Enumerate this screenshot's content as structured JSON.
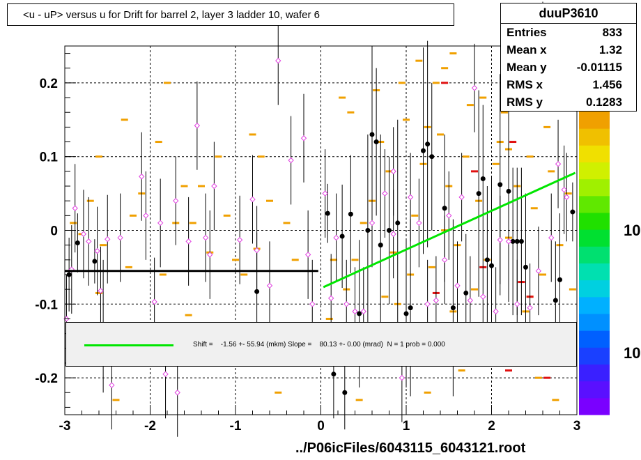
{
  "title": "<u - uP>       versus   u for Drift for barrel 2, layer 3 ladder 10, wafer 6",
  "stats": {
    "name": "duuP3610",
    "rows": [
      {
        "k": "Entries",
        "v": "833"
      },
      {
        "k": "Mean x",
        "v": "1.32"
      },
      {
        "k": "Mean y",
        "v": "-0.01115"
      },
      {
        "k": "RMS x",
        "v": "1.456"
      },
      {
        "k": "RMS y",
        "v": "0.1283"
      }
    ]
  },
  "fit": {
    "text": "Shift =    -1.56 +- 55.94 (mkm) Slope =    80.13 +- 0.00 (mrad)  N = 1 prob = 0.000",
    "line_color": "#00e600"
  },
  "footer": "../P06icFiles/6043115_6043121.root",
  "palette_labels": [
    "10",
    "10"
  ],
  "chart_data": {
    "type": "scatter",
    "xlim": [
      -3,
      3
    ],
    "ylim": [
      -0.25,
      0.25
    ],
    "x_ticks": [
      "-3",
      "-2",
      "-1",
      "0",
      "1",
      "2",
      "3"
    ],
    "y_ticks": [
      "-0.2",
      "-0.1",
      "0",
      "0.1",
      "0.2"
    ],
    "y_tick_values": [
      -0.2,
      -0.1,
      0,
      0.1,
      0.2
    ],
    "grid": true,
    "colors": {
      "hist": "#f0a000",
      "hist_hot": "#e01010",
      "profile": "#000000",
      "open": "#e040e0",
      "fit": "#00e600",
      "ref": "#000000"
    },
    "reference_line": {
      "x": [
        -3,
        -0.03
      ],
      "y": [
        -0.055,
        -0.055
      ]
    },
    "fit_line": {
      "x": [
        0.03,
        2.98
      ],
      "y": [
        -0.077,
        0.078
      ]
    },
    "hist_cells": [
      [
        -2.8,
        -0.005
      ],
      [
        -2.7,
        0.04
      ],
      [
        -2.6,
        -0.085
      ],
      [
        -2.55,
        -0.02
      ],
      [
        -2.3,
        0.15
      ],
      [
        -2.2,
        0.02
      ],
      [
        -2.1,
        -0.13
      ],
      [
        -1.9,
        0.12
      ],
      [
        -1.8,
        0.2
      ],
      [
        -1.7,
        0.01
      ],
      [
        -1.6,
        0.06
      ],
      [
        -1.4,
        0.06
      ],
      [
        -1.3,
        -0.03
      ],
      [
        -1.2,
        0.1
      ],
      [
        -1.1,
        0.02
      ],
      [
        -1.0,
        -0.04
      ],
      [
        -0.9,
        -0.06
      ],
      [
        -0.8,
        0.13
      ],
      [
        -0.7,
        0.1
      ],
      [
        -0.6,
        0.04
      ],
      [
        -0.4,
        0.01
      ],
      [
        -0.3,
        -0.04
      ],
      [
        -1.5,
        0.01
      ],
      [
        -0.75,
        -0.025
      ],
      [
        -0.25,
        -0.17
      ],
      [
        -0.5,
        -0.22
      ],
      [
        -2.6,
        0.1
      ],
      [
        -2.9,
        0.01
      ],
      [
        -2.1,
        0.05
      ],
      [
        -2.9,
        -0.16
      ],
      [
        -2.25,
        -0.05
      ],
      [
        -1.85,
        -0.06
      ],
      [
        -1.55,
        -0.115
      ],
      [
        -2.4,
        -0.23
      ],
      [
        0.1,
        -0.12
      ],
      [
        0.2,
        -0.14
      ],
      [
        0.3,
        -0.08
      ],
      [
        0.4,
        -0.04
      ],
      [
        0.5,
        0.01
      ],
      [
        0.6,
        0.04
      ],
      [
        0.7,
        0.12
      ],
      [
        0.8,
        0.08
      ],
      [
        0.9,
        -0.1
      ],
      [
        1.0,
        0.15
      ],
      [
        1.1,
        0.02
      ],
      [
        1.2,
        0.09
      ],
      [
        1.3,
        -0.05
      ],
      [
        1.4,
        0.13
      ],
      [
        1.5,
        0.06
      ],
      [
        1.6,
        -0.02
      ],
      [
        1.7,
        0.1
      ],
      [
        1.8,
        -0.08
      ],
      [
        1.9,
        0.18
      ],
      [
        2.0,
        -0.14
      ],
      [
        2.1,
        0.12
      ],
      [
        2.2,
        -0.01
      ],
      [
        2.3,
        0.06
      ],
      [
        2.4,
        -0.11
      ],
      [
        2.5,
        0.03
      ],
      [
        2.6,
        -0.06
      ],
      [
        2.7,
        0.08
      ],
      [
        2.8,
        -0.02
      ],
      [
        2.9,
        0.05
      ],
      [
        1.35,
        0.2
      ],
      [
        1.45,
        0.22
      ],
      [
        1.55,
        0.24
      ],
      [
        0.35,
        0.16
      ],
      [
        0.95,
        0.2
      ],
      [
        1.15,
        0.23
      ],
      [
        2.15,
        0.16
      ],
      [
        2.35,
        0.2
      ],
      [
        2.55,
        -0.2
      ],
      [
        2.75,
        -0.23
      ],
      [
        2.85,
        -0.17
      ],
      [
        1.65,
        -0.19
      ],
      [
        1.25,
        -0.22
      ],
      [
        0.55,
        -0.18
      ],
      [
        0.45,
        -0.23
      ],
      [
        0.75,
        -0.09
      ],
      [
        1.05,
        -0.06
      ],
      [
        1.85,
        0.04
      ],
      [
        2.05,
        0.09
      ],
      [
        2.25,
        -0.16
      ],
      [
        2.45,
        0.1
      ],
      [
        2.65,
        0.14
      ],
      [
        2.95,
        -0.08
      ],
      [
        0.65,
        0.19
      ],
      [
        0.25,
        0.18
      ],
      [
        1.75,
        0.17
      ],
      [
        0.15,
        -0.04
      ],
      [
        1.95,
        -0.04
      ],
      [
        2.35,
        -0.13
      ],
      [
        2.45,
        -0.09
      ],
      [
        2.2,
        0.11
      ],
      [
        1.55,
        -0.11
      ],
      [
        1.25,
        0.14
      ],
      [
        0.85,
        -0.03
      ],
      [
        1.45,
        0.0
      ]
    ],
    "hot_cells": [
      [
        1.45,
        0.2
      ],
      [
        1.35,
        -0.085
      ],
      [
        1.8,
        0.08
      ],
      [
        2.25,
        0.12
      ],
      [
        2.35,
        -0.07
      ],
      [
        2.45,
        -0.09
      ],
      [
        2.65,
        -0.2
      ],
      [
        1.9,
        -0.05
      ],
      [
        2.2,
        -0.19
      ]
    ],
    "profile_points": [
      {
        "x": -2.95,
        "y": -0.06,
        "e": 0.05
      },
      {
        "x": -2.85,
        "y": -0.017,
        "e": 0.04
      },
      {
        "x": -2.65,
        "y": -0.042,
        "e": 0.03
      },
      {
        "x": -2.55,
        "y": -0.13,
        "e": 0.09
      },
      {
        "x": -0.75,
        "y": -0.083,
        "e": 0.08
      },
      {
        "x": 0.08,
        "y": 0.023,
        "e": 0.04
      },
      {
        "x": 0.15,
        "y": -0.195,
        "e": 0.06
      },
      {
        "x": 0.28,
        "y": -0.22,
        "e": 0.05
      },
      {
        "x": 0.35,
        "y": 0.022,
        "e": 0.08
      },
      {
        "x": 0.45,
        "y": -0.113,
        "e": 0.1
      },
      {
        "x": 0.6,
        "y": 0.13,
        "e": 0.12
      },
      {
        "x": 0.65,
        "y": 0.12,
        "e": 0.1
      },
      {
        "x": 0.7,
        "y": -0.02,
        "e": 0.15
      },
      {
        "x": 0.8,
        "y": 0.0,
        "e": 0.1
      },
      {
        "x": 0.9,
        "y": 0.01,
        "e": 0.14
      },
      {
        "x": 1.0,
        "y": -0.113,
        "e": 0.1
      },
      {
        "x": 1.05,
        "y": -0.105,
        "e": 0.12
      },
      {
        "x": 1.2,
        "y": 0.108,
        "e": 0.14
      },
      {
        "x": 1.25,
        "y": 0.117,
        "e": 0.14
      },
      {
        "x": 1.3,
        "y": 0.1,
        "e": 0.1
      },
      {
        "x": 1.45,
        "y": 0.03,
        "e": 0.1
      },
      {
        "x": 1.55,
        "y": -0.105,
        "e": 0.12
      },
      {
        "x": 1.7,
        "y": -0.085,
        "e": 0.08
      },
      {
        "x": 1.85,
        "y": 0.05,
        "e": 0.14
      },
      {
        "x": 1.9,
        "y": 0.07,
        "e": 0.1
      },
      {
        "x": 1.95,
        "y": -0.04,
        "e": 0.1
      },
      {
        "x": 2.0,
        "y": -0.048,
        "e": 0.12
      },
      {
        "x": 2.1,
        "y": 0.062,
        "e": 0.15
      },
      {
        "x": 2.2,
        "y": 0.053,
        "e": 0.15
      },
      {
        "x": 2.25,
        "y": -0.015,
        "e": 0.1
      },
      {
        "x": 2.3,
        "y": -0.015,
        "e": 0.1
      },
      {
        "x": 2.35,
        "y": -0.015,
        "e": 0.1
      },
      {
        "x": 2.4,
        "y": -0.05,
        "e": 0.1
      },
      {
        "x": 2.75,
        "y": -0.095,
        "e": 0.08
      },
      {
        "x": 2.8,
        "y": -0.067,
        "e": 0.09
      },
      {
        "x": 2.95,
        "y": 0.025,
        "e": 0.04
      },
      {
        "x": 0.55,
        "y": 0.0,
        "e": 0.13
      },
      {
        "x": 0.25,
        "y": -0.008,
        "e": 0.07
      }
    ],
    "open_points": [
      {
        "x": -2.98,
        "y": -0.12
      },
      {
        "x": -2.92,
        "y": -0.053
      },
      {
        "x": -2.88,
        "y": 0.03
      },
      {
        "x": -2.78,
        "y": -0.005
      },
      {
        "x": -2.72,
        "y": -0.015
      },
      {
        "x": -2.62,
        "y": -0.028
      },
      {
        "x": -2.58,
        "y": -0.082
      },
      {
        "x": -2.5,
        "y": -0.012
      },
      {
        "x": -2.45,
        "y": -0.21
      },
      {
        "x": -2.35,
        "y": -0.01
      },
      {
        "x": -2.1,
        "y": 0.073
      },
      {
        "x": -2.05,
        "y": 0.02
      },
      {
        "x": -1.95,
        "y": -0.097
      },
      {
        "x": -1.88,
        "y": 0.01
      },
      {
        "x": -1.82,
        "y": -0.195
      },
      {
        "x": -1.7,
        "y": 0.04
      },
      {
        "x": -1.68,
        "y": -0.22
      },
      {
        "x": -1.55,
        "y": -0.015
      },
      {
        "x": -1.45,
        "y": 0.142
      },
      {
        "x": -1.35,
        "y": -0.01
      },
      {
        "x": -1.3,
        "y": -0.033
      },
      {
        "x": -1.25,
        "y": 0.06
      },
      {
        "x": -0.95,
        "y": -0.013
      },
      {
        "x": -0.8,
        "y": 0.042
      },
      {
        "x": -0.75,
        "y": -0.027
      },
      {
        "x": -0.6,
        "y": -0.075
      },
      {
        "x": -0.5,
        "y": 0.23
      },
      {
        "x": -0.35,
        "y": 0.095
      },
      {
        "x": -0.2,
        "y": 0.125
      },
      {
        "x": -0.15,
        "y": -0.033
      },
      {
        "x": -0.1,
        "y": -0.1
      },
      {
        "x": 0.05,
        "y": 0.05
      },
      {
        "x": 0.12,
        "y": -0.092
      },
      {
        "x": 0.18,
        "y": -0.01
      },
      {
        "x": 0.3,
        "y": -0.1
      },
      {
        "x": 0.5,
        "y": -0.11
      },
      {
        "x": 0.6,
        "y": 0.01
      },
      {
        "x": 0.75,
        "y": 0.05
      },
      {
        "x": 0.85,
        "y": 0.08
      },
      {
        "x": 0.95,
        "y": -0.2
      },
      {
        "x": 1.05,
        "y": 0.045
      },
      {
        "x": 1.15,
        "y": 0.01
      },
      {
        "x": 1.35,
        "y": -0.095
      },
      {
        "x": 1.5,
        "y": 0.02
      },
      {
        "x": 1.6,
        "y": -0.075
      },
      {
        "x": 1.75,
        "y": -0.095
      },
      {
        "x": 1.8,
        "y": 0.193
      },
      {
        "x": 1.9,
        "y": -0.09
      },
      {
        "x": 2.1,
        "y": -0.013
      },
      {
        "x": 2.3,
        "y": -0.1
      },
      {
        "x": 2.45,
        "y": -0.105
      },
      {
        "x": 2.55,
        "y": -0.055
      },
      {
        "x": 2.6,
        "y": 0.25
      },
      {
        "x": 2.7,
        "y": -0.01
      },
      {
        "x": 2.78,
        "y": 0.09
      },
      {
        "x": 2.85,
        "y": 0.055
      },
      {
        "x": 2.88,
        "y": 0.045
      },
      {
        "x": 1.25,
        "y": -0.1
      },
      {
        "x": 2.05,
        "y": -0.11
      },
      {
        "x": 0.85,
        "y": -0.005
      },
      {
        "x": 0.4,
        "y": -0.11
      },
      {
        "x": 1.45,
        "y": -0.04
      },
      {
        "x": 1.65,
        "y": 0.045
      },
      {
        "x": 2.2,
        "y": -0.015
      }
    ]
  }
}
